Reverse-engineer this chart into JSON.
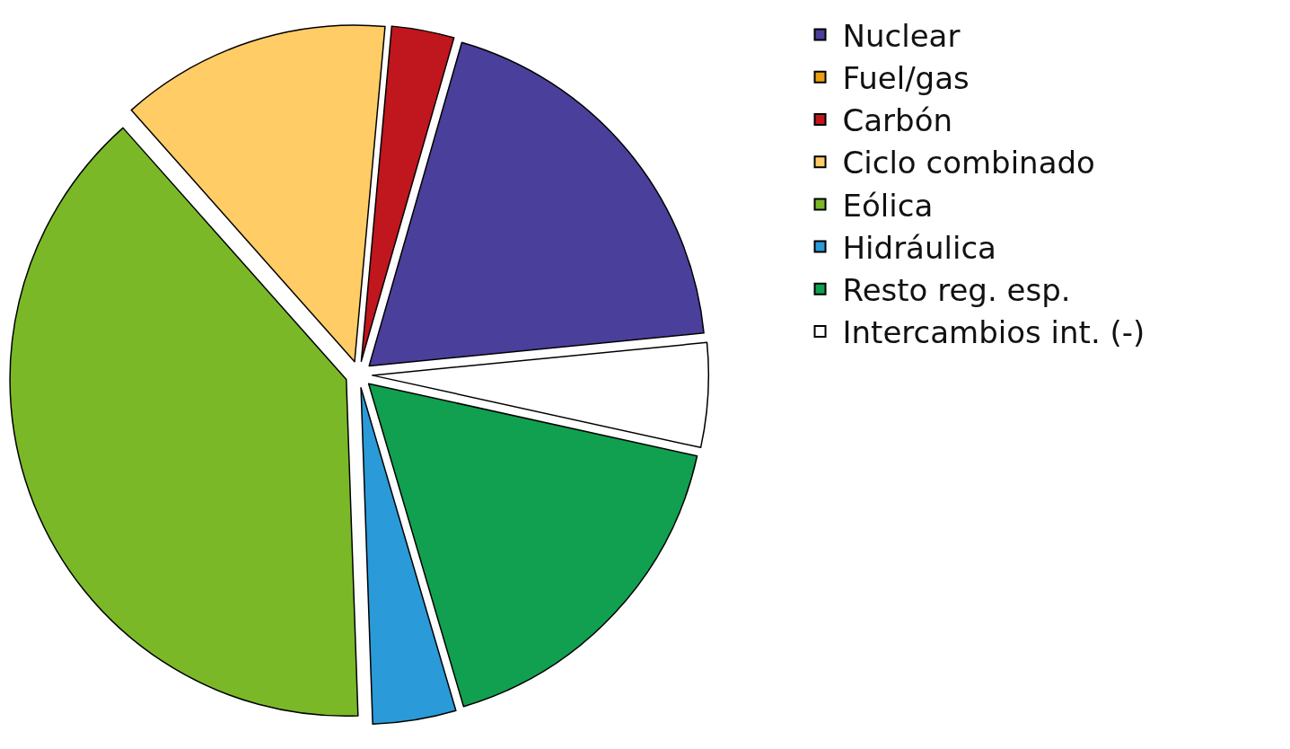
{
  "chart_data": {
    "type": "pie",
    "categories": [
      "Nuclear",
      "Fuel/gas",
      "Carbón",
      "Ciclo combinado",
      "Eólica",
      "Hidráulica",
      "Resto reg. esp.",
      "Intercambios int. (-)"
    ],
    "values": [
      19,
      0,
      3,
      13,
      39,
      4,
      17,
      5
    ],
    "colors": [
      "#4a3f9a",
      "#e8a010",
      "#c0161e",
      "#ffcc66",
      "#7ab828",
      "#2a9ad8",
      "#10a050",
      "#ffffff"
    ],
    "legend": "top right"
  }
}
